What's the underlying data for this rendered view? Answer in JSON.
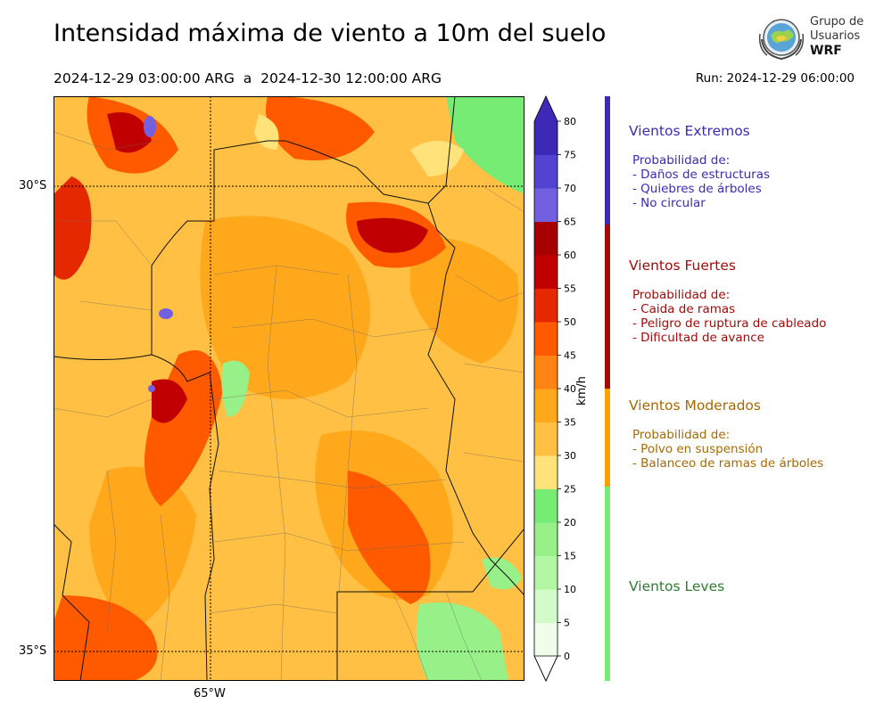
{
  "header": {
    "title": "Intensidad máxima de viento a 10m del suelo",
    "period": "2024-12-29 03:00:00 ARG  a  2024-12-30 12:00:00 ARG",
    "run": "Run: 2024-12-29 06:00:00"
  },
  "logo": {
    "line1": "Grupo de",
    "line2": "Usuarios",
    "line3": "WRF"
  },
  "map": {
    "lat_labels": [
      "30°S",
      "35°S"
    ],
    "lon_labels": [
      "65°W"
    ]
  },
  "colorbar": {
    "unit": "km/h",
    "ticks": [
      "0",
      "5",
      "10",
      "15",
      "20",
      "25",
      "30",
      "35",
      "40",
      "45",
      "50",
      "55",
      "60",
      "65",
      "70",
      "75",
      "80"
    ],
    "colors": [
      "#effdea",
      "#d2fbc9",
      "#b3f7a4",
      "#97f088",
      "#76ec75",
      "#ffe37a",
      "#ffc043",
      "#ffa81c",
      "#ff8313",
      "#ff5a00",
      "#e62800",
      "#c00000",
      "#a60000",
      "#7360e0",
      "#5243d2",
      "#3d29b8"
    ],
    "min_arrow_color": "#ffffff",
    "max_arrow_color": "#3d29b8"
  },
  "categories": [
    {
      "title": "Vientos Extremos",
      "color": "#3a2bb5",
      "items": [
        "Probabilidad de:",
        "- Daños de estructuras",
        "- Quiebres de árboles",
        "- No circular"
      ]
    },
    {
      "title": "Vientos Fuertes",
      "color": "#a30a0a",
      "items": [
        "Probabilidad de:",
        "- Caida de ramas",
        "- Peligro de ruptura de cableado",
        "- Dificultad de avance"
      ]
    },
    {
      "title": "Vientos Moderados",
      "color": "#a86a00",
      "items": [
        "Probabilidad de:",
        "- Polvo en suspensión",
        "- Balanceo de ramas de árboles"
      ]
    },
    {
      "title": "Vientos Leves",
      "color": "#2e7d32",
      "items": []
    }
  ],
  "category_bar_colors": [
    "#3a2bb5",
    "#a30a0a",
    "#ff9f00",
    "#76ec75"
  ]
}
